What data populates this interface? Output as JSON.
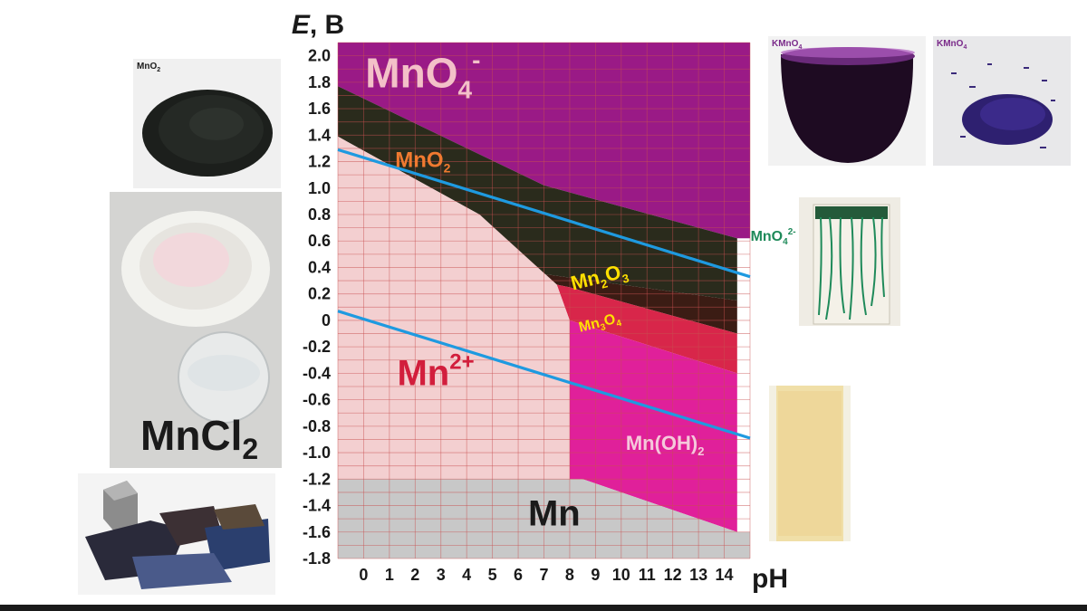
{
  "chart_data": {
    "type": "area",
    "title": "",
    "ylabel_italic": "E",
    "ylabel_rest": ", В",
    "xlabel": "pH",
    "xlim": [
      -1,
      15
    ],
    "ylim": [
      -1.8,
      2.1
    ],
    "grid": true,
    "x_ticks": [
      "0",
      "1",
      "2",
      "3",
      "4",
      "5",
      "6",
      "7",
      "8",
      "9",
      "10",
      "11",
      "12",
      "13",
      "14"
    ],
    "y_ticks": [
      "2.0",
      "1.8",
      "1.6",
      "1.4",
      "1.2",
      "1.0",
      "0.8",
      "0.6",
      "0.4",
      "0.2",
      "0",
      "-0.2",
      "-0.4",
      "-0.6",
      "-0.8",
      "-1.0",
      "-1.2",
      "-1.4",
      "-1.6",
      "-1.8"
    ],
    "colors": {
      "MnO4-": "#9a1a86",
      "MnO2": "#2a2b1c",
      "Mn2O3": "#3b1c14",
      "Mn3O4": "#d8264a",
      "Mn(OH)2": "#e0209a",
      "Mn2+": "#f3cfd0",
      "Mn": "#c8c8c8",
      "water_lines": "#1e9ae0",
      "grid": "#c85050"
    },
    "regions": [
      {
        "species": "MnO4-",
        "polygon": [
          [
            -1,
            2.1
          ],
          [
            15,
            2.1
          ],
          [
            15,
            0.62
          ],
          [
            14.5,
            0.62
          ],
          [
            7,
            1.02
          ],
          [
            -1,
            1.77
          ]
        ]
      },
      {
        "species": "MnO2",
        "polygon": [
          [
            -1,
            1.77
          ],
          [
            7,
            1.02
          ],
          [
            14.5,
            0.62
          ],
          [
            14.5,
            0.15
          ],
          [
            7,
            0.35
          ],
          [
            4.5,
            0.8
          ],
          [
            -1,
            1.39
          ]
        ]
      },
      {
        "species": "Mn2O3",
        "polygon": [
          [
            4.5,
            0.8
          ],
          [
            7,
            0.35
          ],
          [
            14.5,
            0.15
          ],
          [
            14.5,
            -0.1
          ],
          [
            8,
            0.25
          ],
          [
            7.5,
            0.27
          ]
        ]
      },
      {
        "species": "Mn3O4",
        "polygon": [
          [
            7.5,
            0.27
          ],
          [
            8,
            0.25
          ],
          [
            14.5,
            -0.1
          ],
          [
            14.5,
            -0.4
          ],
          [
            8,
            0.0
          ]
        ]
      },
      {
        "species": "Mn(OH)2",
        "polygon": [
          [
            8,
            0.0
          ],
          [
            14.5,
            -0.4
          ],
          [
            14.5,
            -1.6
          ],
          [
            8.5,
            -1.2
          ],
          [
            8,
            -1.2
          ]
        ]
      },
      {
        "species": "Mn2+",
        "polygon": [
          [
            -1,
            1.39
          ],
          [
            4.5,
            0.8
          ],
          [
            7.5,
            0.27
          ],
          [
            8,
            0.0
          ],
          [
            8,
            -1.2
          ],
          [
            -1,
            -1.2
          ]
        ]
      },
      {
        "species": "Mn",
        "polygon": [
          [
            -1,
            -1.2
          ],
          [
            8,
            -1.2
          ],
          [
            8.5,
            -1.2
          ],
          [
            14.5,
            -1.6
          ],
          [
            15,
            -1.6
          ],
          [
            15,
            -1.8
          ],
          [
            -1,
            -1.8
          ]
        ]
      }
    ],
    "water_lines": [
      {
        "x": [
          -1,
          15
        ],
        "y": [
          1.29,
          0.33
        ]
      },
      {
        "x": [
          -1,
          15
        ],
        "y": [
          0.07,
          -0.89
        ]
      }
    ],
    "labels": [
      {
        "id": "MnO4",
        "base": "MnO",
        "sub": "4",
        "sup": "-",
        "x": 2.3,
        "y": 1.76,
        "color": "#f3c0c8",
        "size": 46
      },
      {
        "id": "MnO2",
        "base": "MnO",
        "sub": "2",
        "sup": "",
        "x": 2.3,
        "y": 1.16,
        "color": "#f07a30",
        "size": 24
      },
      {
        "id": "Mn2O3",
        "base": "Mn",
        "sub": "2",
        "mid": "O",
        "sub2": "3",
        "sup": "",
        "x": 9.2,
        "y": 0.28,
        "color": "#ffe000",
        "size": 22,
        "rotate": 14
      },
      {
        "id": "Mn3O4",
        "base": "Mn",
        "sub": "3",
        "mid": "O",
        "sub2": "4",
        "sup": "",
        "x": 9.2,
        "y": -0.05,
        "color": "#ffe000",
        "size": 16,
        "rotate": 14
      },
      {
        "id": "Mn2plus",
        "base": "Mn",
        "sub": "",
        "sup": "2+",
        "x": 2.8,
        "y": -0.49,
        "color": "#d21e3c",
        "size": 40
      },
      {
        "id": "MnOH2",
        "base": "Mn(OH)",
        "sub": "2",
        "sup": "",
        "x": 11.7,
        "y": -0.98,
        "color": "#f5c8dc",
        "size": 22
      },
      {
        "id": "Mn",
        "base": "Mn",
        "sub": "",
        "sup": "",
        "x": 7.4,
        "y": -1.55,
        "color": "#1a1a1a",
        "size": 40
      },
      {
        "id": "MnO4_2minus",
        "base": "MnO",
        "sub": "4",
        "sup": "2-",
        "x": 15.9,
        "y": 0.6,
        "color": "#1f8a5a",
        "size": 16
      }
    ]
  },
  "photos": {
    "mno2_caption_base": "MnO",
    "mno2_caption_sub": "2",
    "mncl2_caption_base": "MnCl",
    "mncl2_caption_sub": "2",
    "kmno4_flask_base": "KMnO",
    "kmno4_flask_sub": "4",
    "kmno4_crystals_base": "KMnO",
    "kmno4_crystals_sub": "4"
  }
}
